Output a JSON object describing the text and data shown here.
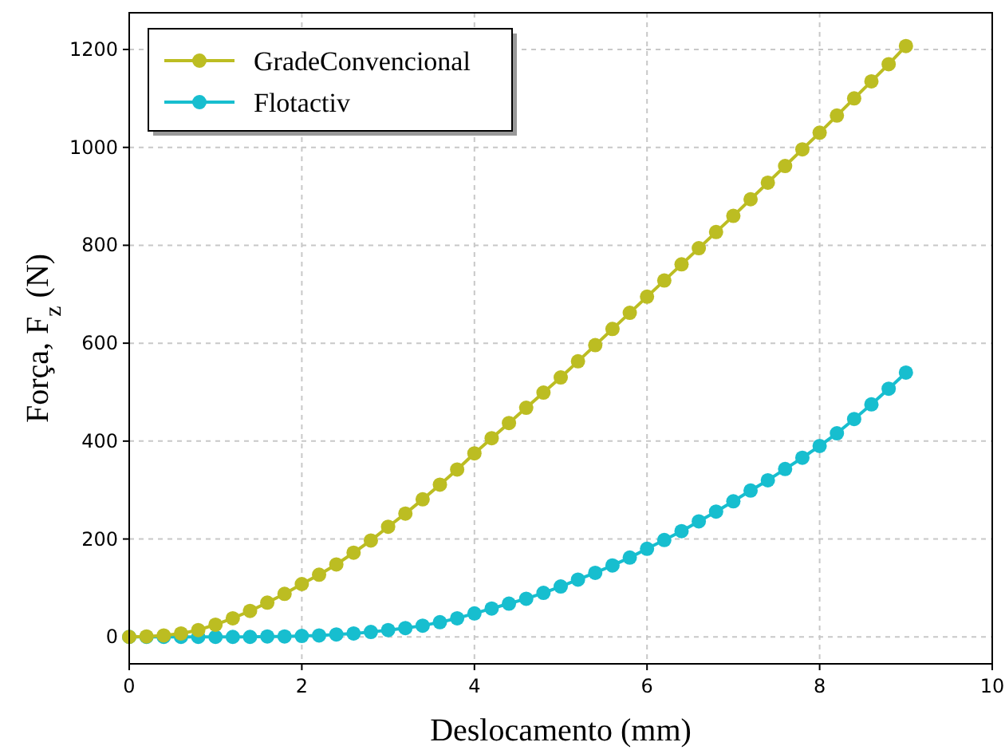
{
  "chart_data": {
    "type": "line",
    "xlabel": "Deslocamento (mm)",
    "ylabel": "Força, F$_{z}$ (N)",
    "x": [
      0,
      0.2,
      0.4,
      0.6,
      0.8,
      1,
      1.2,
      1.4,
      1.6,
      1.8,
      2,
      2.2,
      2.4,
      2.6,
      2.8,
      3,
      3.2,
      3.4,
      3.6,
      3.8,
      4,
      4.2,
      4.4,
      4.6,
      4.8,
      5,
      5.2,
      5.4,
      5.6,
      5.8,
      6,
      6.2,
      6.4,
      6.6,
      6.8,
      7,
      7.2,
      7.4,
      7.6,
      7.8,
      8,
      8.2,
      8.4,
      8.6,
      8.8,
      9
    ],
    "series": [
      {
        "name": "GradeConvencional",
        "color": "#bcbd22",
        "values": [
          0,
          1,
          3,
          7,
          14,
          25,
          38,
          53,
          70,
          88,
          108,
          127,
          148,
          172,
          197,
          225,
          252,
          281,
          311,
          342,
          375,
          406,
          437,
          468,
          499,
          530,
          563,
          596,
          629,
          662,
          695,
          728,
          761,
          794,
          827,
          860,
          894,
          928,
          962,
          996,
          1030,
          1065,
          1100,
          1135,
          1170,
          1207
        ]
      },
      {
        "name": "Flotactiv",
        "color": "#17becf",
        "values": [
          0,
          0,
          0,
          0,
          0,
          0,
          0,
          0,
          1,
          1,
          2,
          3,
          5,
          7,
          10,
          14,
          18,
          23,
          30,
          38,
          48,
          58,
          68,
          78,
          90,
          103,
          117,
          131,
          146,
          162,
          180,
          198,
          216,
          236,
          256,
          277,
          299,
          320,
          343,
          366,
          390,
          416,
          445,
          475,
          507,
          540
        ]
      }
    ],
    "xlim": [
      0,
      10
    ],
    "ylim": [
      -55,
      1275
    ],
    "xticks": [
      0,
      2,
      4,
      6,
      8,
      10
    ],
    "yticks": [
      0,
      200,
      400,
      600,
      800,
      1000,
      1200
    ],
    "grid": true,
    "legend": "top left",
    "marker": "circle",
    "line_style": "solid"
  }
}
